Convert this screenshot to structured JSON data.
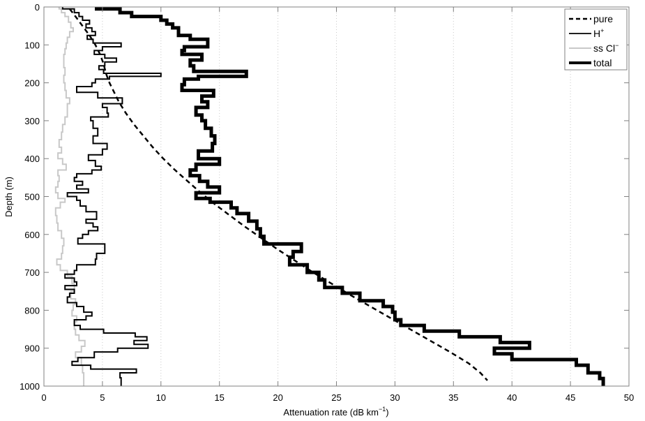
{
  "chart_data": {
    "type": "line",
    "title": "",
    "xlabel": "Attenuation rate (dB km^-1)",
    "xlabel_main": "Attenuation rate (dB km",
    "xlabel_sup": "−1",
    "xlabel_close": ")",
    "ylabel": "Depth (m)",
    "xlim": [
      0,
      50
    ],
    "ylim": [
      1000,
      0
    ],
    "y_reversed": true,
    "grid": "vertical dotted",
    "legend_position": "upper right",
    "x_ticks": [
      0,
      5,
      10,
      15,
      20,
      25,
      30,
      35,
      40,
      45,
      50
    ],
    "y_ticks": [
      0,
      100,
      200,
      300,
      400,
      500,
      600,
      700,
      800,
      900,
      1000
    ],
    "series": [
      {
        "name": "pure",
        "legend_label": "pure",
        "style": "dashed",
        "color": "#000000",
        "width": 2.5,
        "points": [
          [
            2.2,
            5
          ],
          [
            2.7,
            25
          ],
          [
            3.3,
            50
          ],
          [
            3.9,
            75
          ],
          [
            4.4,
            100
          ],
          [
            4.8,
            125
          ],
          [
            5.1,
            150
          ],
          [
            5.3,
            175
          ],
          [
            5.6,
            200
          ],
          [
            6.0,
            225
          ],
          [
            6.4,
            250
          ],
          [
            7.0,
            280
          ],
          [
            7.7,
            310
          ],
          [
            8.5,
            340
          ],
          [
            9.3,
            370
          ],
          [
            10.2,
            400
          ],
          [
            11.2,
            430
          ],
          [
            12.3,
            460
          ],
          [
            13.4,
            490
          ],
          [
            14.6,
            520
          ],
          [
            15.9,
            550
          ],
          [
            17.2,
            580
          ],
          [
            18.6,
            610
          ],
          [
            20.0,
            640
          ],
          [
            21.5,
            670
          ],
          [
            23.0,
            700
          ],
          [
            24.6,
            730
          ],
          [
            26.2,
            760
          ],
          [
            27.9,
            790
          ],
          [
            29.6,
            820
          ],
          [
            31.3,
            850
          ],
          [
            33.0,
            880
          ],
          [
            34.7,
            910
          ],
          [
            36.3,
            940
          ],
          [
            37.3,
            965
          ],
          [
            37.9,
            985
          ]
        ]
      },
      {
        "name": "H+",
        "legend_label": "H",
        "legend_sup": "+",
        "style": "step-thin",
        "color": "#000000",
        "width": 2,
        "steps": [
          [
            1.6,
            5
          ],
          [
            2.6,
            15
          ],
          [
            3.0,
            25
          ],
          [
            3.3,
            35
          ],
          [
            3.9,
            45
          ],
          [
            3.6,
            55
          ],
          [
            4.1,
            65
          ],
          [
            4.4,
            75
          ],
          [
            3.7,
            85
          ],
          [
            4.2,
            95
          ],
          [
            6.6,
            105
          ],
          [
            5.0,
            115
          ],
          [
            4.3,
            125
          ],
          [
            5.2,
            135
          ],
          [
            6.2,
            145
          ],
          [
            5.2,
            155
          ],
          [
            4.7,
            165
          ],
          [
            5.1,
            175
          ],
          [
            10.0,
            183
          ],
          [
            5.6,
            190
          ],
          [
            4.4,
            200
          ],
          [
            4.1,
            210
          ],
          [
            2.8,
            225
          ],
          [
            4.6,
            240
          ],
          [
            6.7,
            255
          ],
          [
            5.0,
            265
          ],
          [
            5.4,
            280
          ],
          [
            5.5,
            290
          ],
          [
            4.0,
            300
          ],
          [
            4.2,
            320
          ],
          [
            4.6,
            340
          ],
          [
            4.2,
            360
          ],
          [
            5.4,
            375
          ],
          [
            5.0,
            390
          ],
          [
            3.8,
            405
          ],
          [
            4.4,
            420
          ],
          [
            4.9,
            430
          ],
          [
            4.1,
            440
          ],
          [
            2.8,
            450
          ],
          [
            2.6,
            460
          ],
          [
            3.3,
            470
          ],
          [
            2.8,
            480
          ],
          [
            3.8,
            490
          ],
          [
            2.0,
            500
          ],
          [
            2.8,
            510
          ],
          [
            3.1,
            525
          ],
          [
            3.6,
            540
          ],
          [
            4.5,
            560
          ],
          [
            3.6,
            570
          ],
          [
            4.2,
            580
          ],
          [
            4.6,
            590
          ],
          [
            3.8,
            600
          ],
          [
            3.3,
            610
          ],
          [
            2.9,
            625
          ],
          [
            5.2,
            650
          ],
          [
            4.5,
            665
          ],
          [
            4.4,
            680
          ],
          [
            2.8,
            695
          ],
          [
            2.6,
            705
          ],
          [
            1.8,
            715
          ],
          [
            2.6,
            725
          ],
          [
            2.8,
            735
          ],
          [
            1.8,
            745
          ],
          [
            2.6,
            755
          ],
          [
            2.2,
            765
          ],
          [
            2.0,
            780
          ],
          [
            2.8,
            790
          ],
          [
            3.4,
            805
          ],
          [
            4.1,
            815
          ],
          [
            3.6,
            825
          ],
          [
            2.6,
            840
          ],
          [
            3.1,
            850
          ],
          [
            5.1,
            860
          ],
          [
            7.8,
            870
          ],
          [
            8.8,
            880
          ],
          [
            7.7,
            890
          ],
          [
            8.9,
            900
          ],
          [
            6.3,
            910
          ],
          [
            4.3,
            925
          ],
          [
            2.9,
            935
          ],
          [
            2.4,
            945
          ],
          [
            4.0,
            955
          ],
          [
            7.9,
            965
          ],
          [
            6.5,
            978
          ],
          [
            6.6,
            992
          ],
          [
            6.6,
            1000
          ]
        ]
      },
      {
        "name": "ss Cl-",
        "legend_label": "ss Cl",
        "legend_sup": "−",
        "style": "step-thin",
        "color": "#c8c8c8",
        "width": 2,
        "steps": [
          [
            1.3,
            5
          ],
          [
            1.5,
            15
          ],
          [
            1.8,
            25
          ],
          [
            2.1,
            40
          ],
          [
            2.3,
            55
          ],
          [
            2.5,
            65
          ],
          [
            2.2,
            80
          ],
          [
            2.0,
            95
          ],
          [
            1.9,
            110
          ],
          [
            1.8,
            125
          ],
          [
            1.7,
            140
          ],
          [
            1.7,
            160
          ],
          [
            1.8,
            180
          ],
          [
            1.7,
            200
          ],
          [
            1.8,
            220
          ],
          [
            1.9,
            240
          ],
          [
            2.2,
            255
          ],
          [
            2.0,
            270
          ],
          [
            2.0,
            290
          ],
          [
            1.8,
            310
          ],
          [
            1.6,
            330
          ],
          [
            1.5,
            350
          ],
          [
            1.3,
            370
          ],
          [
            1.5,
            385
          ],
          [
            1.2,
            400
          ],
          [
            1.6,
            415
          ],
          [
            1.9,
            430
          ],
          [
            1.2,
            445
          ],
          [
            1.3,
            460
          ],
          [
            1.2,
            475
          ],
          [
            1.0,
            490
          ],
          [
            1.2,
            505
          ],
          [
            1.8,
            515
          ],
          [
            1.4,
            530
          ],
          [
            1.0,
            550
          ],
          [
            1.1,
            570
          ],
          [
            1.2,
            590
          ],
          [
            1.5,
            610
          ],
          [
            1.7,
            630
          ],
          [
            1.6,
            650
          ],
          [
            1.5,
            665
          ],
          [
            1.1,
            680
          ],
          [
            1.4,
            695
          ],
          [
            2.0,
            710
          ],
          [
            2.4,
            730
          ],
          [
            2.6,
            750
          ],
          [
            2.3,
            770
          ],
          [
            2.7,
            785
          ],
          [
            2.5,
            800
          ],
          [
            2.4,
            815
          ],
          [
            2.8,
            830
          ],
          [
            2.6,
            850
          ],
          [
            2.7,
            865
          ],
          [
            3.0,
            880
          ],
          [
            3.5,
            895
          ],
          [
            3.2,
            910
          ],
          [
            2.7,
            925
          ],
          [
            3.2,
            945
          ],
          [
            3.3,
            965
          ],
          [
            3.4,
            985
          ],
          [
            3.4,
            1000
          ]
        ]
      },
      {
        "name": "total",
        "legend_label": "total",
        "style": "step-thick",
        "color": "#000000",
        "width": 5,
        "steps": [
          [
            4.5,
            5
          ],
          [
            6.5,
            15
          ],
          [
            7.5,
            25
          ],
          [
            10.0,
            35
          ],
          [
            10.5,
            45
          ],
          [
            11.0,
            55
          ],
          [
            11.5,
            65
          ],
          [
            11.5,
            75
          ],
          [
            12.5,
            85
          ],
          [
            14.0,
            105
          ],
          [
            12.0,
            115
          ],
          [
            11.8,
            125
          ],
          [
            13.5,
            140
          ],
          [
            12.5,
            155
          ],
          [
            12.8,
            170
          ],
          [
            17.3,
            183
          ],
          [
            13.2,
            190
          ],
          [
            12.0,
            205
          ],
          [
            11.8,
            220
          ],
          [
            14.5,
            235
          ],
          [
            13.5,
            250
          ],
          [
            14.0,
            265
          ],
          [
            13.0,
            285
          ],
          [
            13.5,
            300
          ],
          [
            13.8,
            320
          ],
          [
            14.3,
            340
          ],
          [
            14.6,
            360
          ],
          [
            14.4,
            380
          ],
          [
            13.2,
            400
          ],
          [
            15.0,
            415
          ],
          [
            13.0,
            430
          ],
          [
            12.5,
            445
          ],
          [
            13.3,
            460
          ],
          [
            14.0,
            475
          ],
          [
            15.0,
            490
          ],
          [
            13.0,
            505
          ],
          [
            14.2,
            515
          ],
          [
            16.0,
            530
          ],
          [
            16.5,
            545
          ],
          [
            17.5,
            565
          ],
          [
            18.2,
            585
          ],
          [
            18.5,
            605
          ],
          [
            18.8,
            625
          ],
          [
            22.0,
            645
          ],
          [
            21.3,
            660
          ],
          [
            21.0,
            680
          ],
          [
            22.5,
            700
          ],
          [
            23.5,
            720
          ],
          [
            24.0,
            740
          ],
          [
            25.5,
            755
          ],
          [
            27.0,
            775
          ],
          [
            29.0,
            790
          ],
          [
            29.8,
            805
          ],
          [
            30.0,
            825
          ],
          [
            30.5,
            840
          ],
          [
            32.5,
            855
          ],
          [
            35.5,
            870
          ],
          [
            39.0,
            885
          ],
          [
            41.5,
            900
          ],
          [
            38.5,
            915
          ],
          [
            40.0,
            930
          ],
          [
            45.5,
            945
          ],
          [
            46.5,
            965
          ],
          [
            47.5,
            980
          ],
          [
            47.8,
            995
          ],
          [
            47.8,
            1000
          ]
        ]
      }
    ]
  },
  "legend": {
    "items": [
      {
        "label": "pure",
        "sup": ""
      },
      {
        "label": "H",
        "sup": "+"
      },
      {
        "label": "ss Cl",
        "sup": "−"
      },
      {
        "label": "total",
        "sup": ""
      }
    ]
  },
  "axes": {
    "x_tick_labels": [
      "0",
      "5",
      "10",
      "15",
      "20",
      "25",
      "30",
      "35",
      "40",
      "45",
      "50"
    ],
    "y_tick_labels": [
      "0",
      "100",
      "200",
      "300",
      "400",
      "500",
      "600",
      "700",
      "800",
      "900",
      "1000"
    ]
  }
}
